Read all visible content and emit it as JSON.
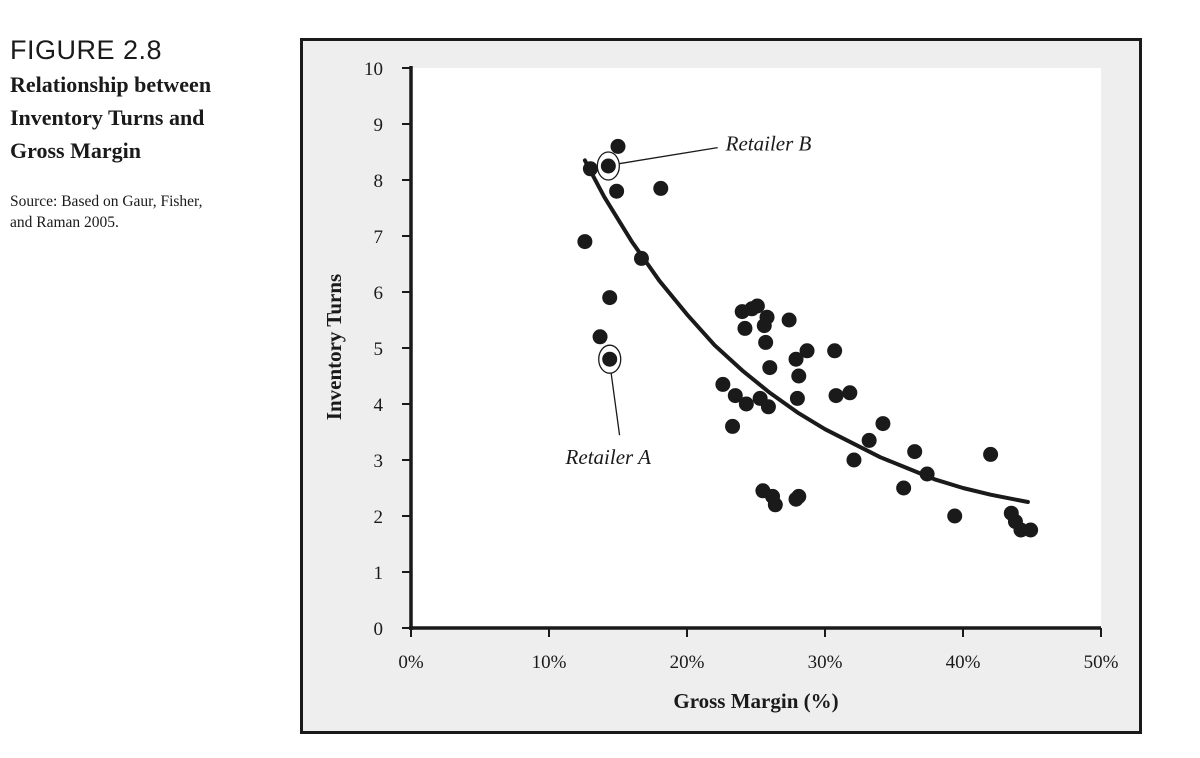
{
  "figure": {
    "number": "FIGURE 2.8",
    "title_lines": [
      "Relationship between",
      "Inventory Turns and",
      "Gross Margin"
    ],
    "source_lines": [
      "Source: Based on Gaur, Fisher,",
      "and Raman 2005."
    ]
  },
  "chart_data": {
    "type": "scatter",
    "title": "Relationship between Inventory Turns and Gross Margin",
    "xlabel": "Gross Margin (%)",
    "ylabel": "Inventory Turns",
    "xlim": [
      0,
      50
    ],
    "ylim": [
      0,
      10
    ],
    "x_ticks": [
      0,
      10,
      20,
      30,
      40,
      50
    ],
    "x_tick_labels": [
      "0%",
      "10%",
      "20%",
      "30%",
      "40%",
      "50%"
    ],
    "y_ticks": [
      0,
      1,
      2,
      3,
      4,
      5,
      6,
      7,
      8,
      9,
      10
    ],
    "y_tick_labels": [
      "0",
      "1",
      "2",
      "3",
      "4",
      "5",
      "6",
      "7",
      "8",
      "9",
      "10"
    ],
    "grid": false,
    "points": [
      {
        "x": 12.6,
        "y": 6.9
      },
      {
        "x": 13.0,
        "y": 8.2
      },
      {
        "x": 13.7,
        "y": 5.2
      },
      {
        "x": 14.4,
        "y": 5.9
      },
      {
        "x": 14.3,
        "y": 8.25
      },
      {
        "x": 14.4,
        "y": 4.8
      },
      {
        "x": 15.0,
        "y": 8.6
      },
      {
        "x": 14.9,
        "y": 7.8
      },
      {
        "x": 16.7,
        "y": 6.6
      },
      {
        "x": 18.1,
        "y": 7.85
      },
      {
        "x": 22.6,
        "y": 4.35
      },
      {
        "x": 23.3,
        "y": 3.6
      },
      {
        "x": 23.5,
        "y": 4.15
      },
      {
        "x": 24.0,
        "y": 5.65
      },
      {
        "x": 24.2,
        "y": 5.35
      },
      {
        "x": 24.3,
        "y": 4.0
      },
      {
        "x": 24.7,
        "y": 5.7
      },
      {
        "x": 25.1,
        "y": 5.75
      },
      {
        "x": 25.3,
        "y": 4.1
      },
      {
        "x": 25.6,
        "y": 5.4
      },
      {
        "x": 25.7,
        "y": 5.1
      },
      {
        "x": 25.8,
        "y": 5.55
      },
      {
        "x": 25.5,
        "y": 2.45
      },
      {
        "x": 25.9,
        "y": 3.95
      },
      {
        "x": 26.0,
        "y": 4.65
      },
      {
        "x": 26.2,
        "y": 2.35
      },
      {
        "x": 26.4,
        "y": 2.2
      },
      {
        "x": 27.4,
        "y": 5.5
      },
      {
        "x": 27.9,
        "y": 4.8
      },
      {
        "x": 28.1,
        "y": 4.5
      },
      {
        "x": 28.0,
        "y": 4.1
      },
      {
        "x": 27.9,
        "y": 2.3
      },
      {
        "x": 28.1,
        "y": 2.35
      },
      {
        "x": 28.7,
        "y": 4.95
      },
      {
        "x": 30.7,
        "y": 4.95
      },
      {
        "x": 30.8,
        "y": 4.15
      },
      {
        "x": 31.8,
        "y": 4.2
      },
      {
        "x": 32.1,
        "y": 3.0
      },
      {
        "x": 33.2,
        "y": 3.35
      },
      {
        "x": 34.2,
        "y": 3.65
      },
      {
        "x": 35.7,
        "y": 2.5
      },
      {
        "x": 36.5,
        "y": 3.15
      },
      {
        "x": 37.4,
        "y": 2.75
      },
      {
        "x": 39.4,
        "y": 2.0
      },
      {
        "x": 42.0,
        "y": 3.1
      },
      {
        "x": 43.5,
        "y": 2.05
      },
      {
        "x": 43.8,
        "y": 1.9
      },
      {
        "x": 44.2,
        "y": 1.75
      },
      {
        "x": 44.9,
        "y": 1.75
      }
    ],
    "trend_curve": [
      {
        "x": 12.6,
        "y": 8.35
      },
      {
        "x": 14,
        "y": 7.7
      },
      {
        "x": 16,
        "y": 6.9
      },
      {
        "x": 18,
        "y": 6.2
      },
      {
        "x": 20,
        "y": 5.6
      },
      {
        "x": 22,
        "y": 5.05
      },
      {
        "x": 24,
        "y": 4.6
      },
      {
        "x": 26,
        "y": 4.2
      },
      {
        "x": 28,
        "y": 3.85
      },
      {
        "x": 30,
        "y": 3.55
      },
      {
        "x": 32,
        "y": 3.3
      },
      {
        "x": 34,
        "y": 3.05
      },
      {
        "x": 36,
        "y": 2.85
      },
      {
        "x": 38,
        "y": 2.65
      },
      {
        "x": 40,
        "y": 2.5
      },
      {
        "x": 42,
        "y": 2.38
      },
      {
        "x": 44.7,
        "y": 2.25
      }
    ],
    "annotations": [
      {
        "label": "Retailer B",
        "point": {
          "x": 14.3,
          "y": 8.25
        },
        "label_at": {
          "x": 22.8,
          "y": 8.65
        }
      },
      {
        "label": "Retailer A",
        "point": {
          "x": 14.4,
          "y": 4.8
        },
        "label_at": {
          "x": 11.2,
          "y": 3.05
        }
      }
    ]
  }
}
